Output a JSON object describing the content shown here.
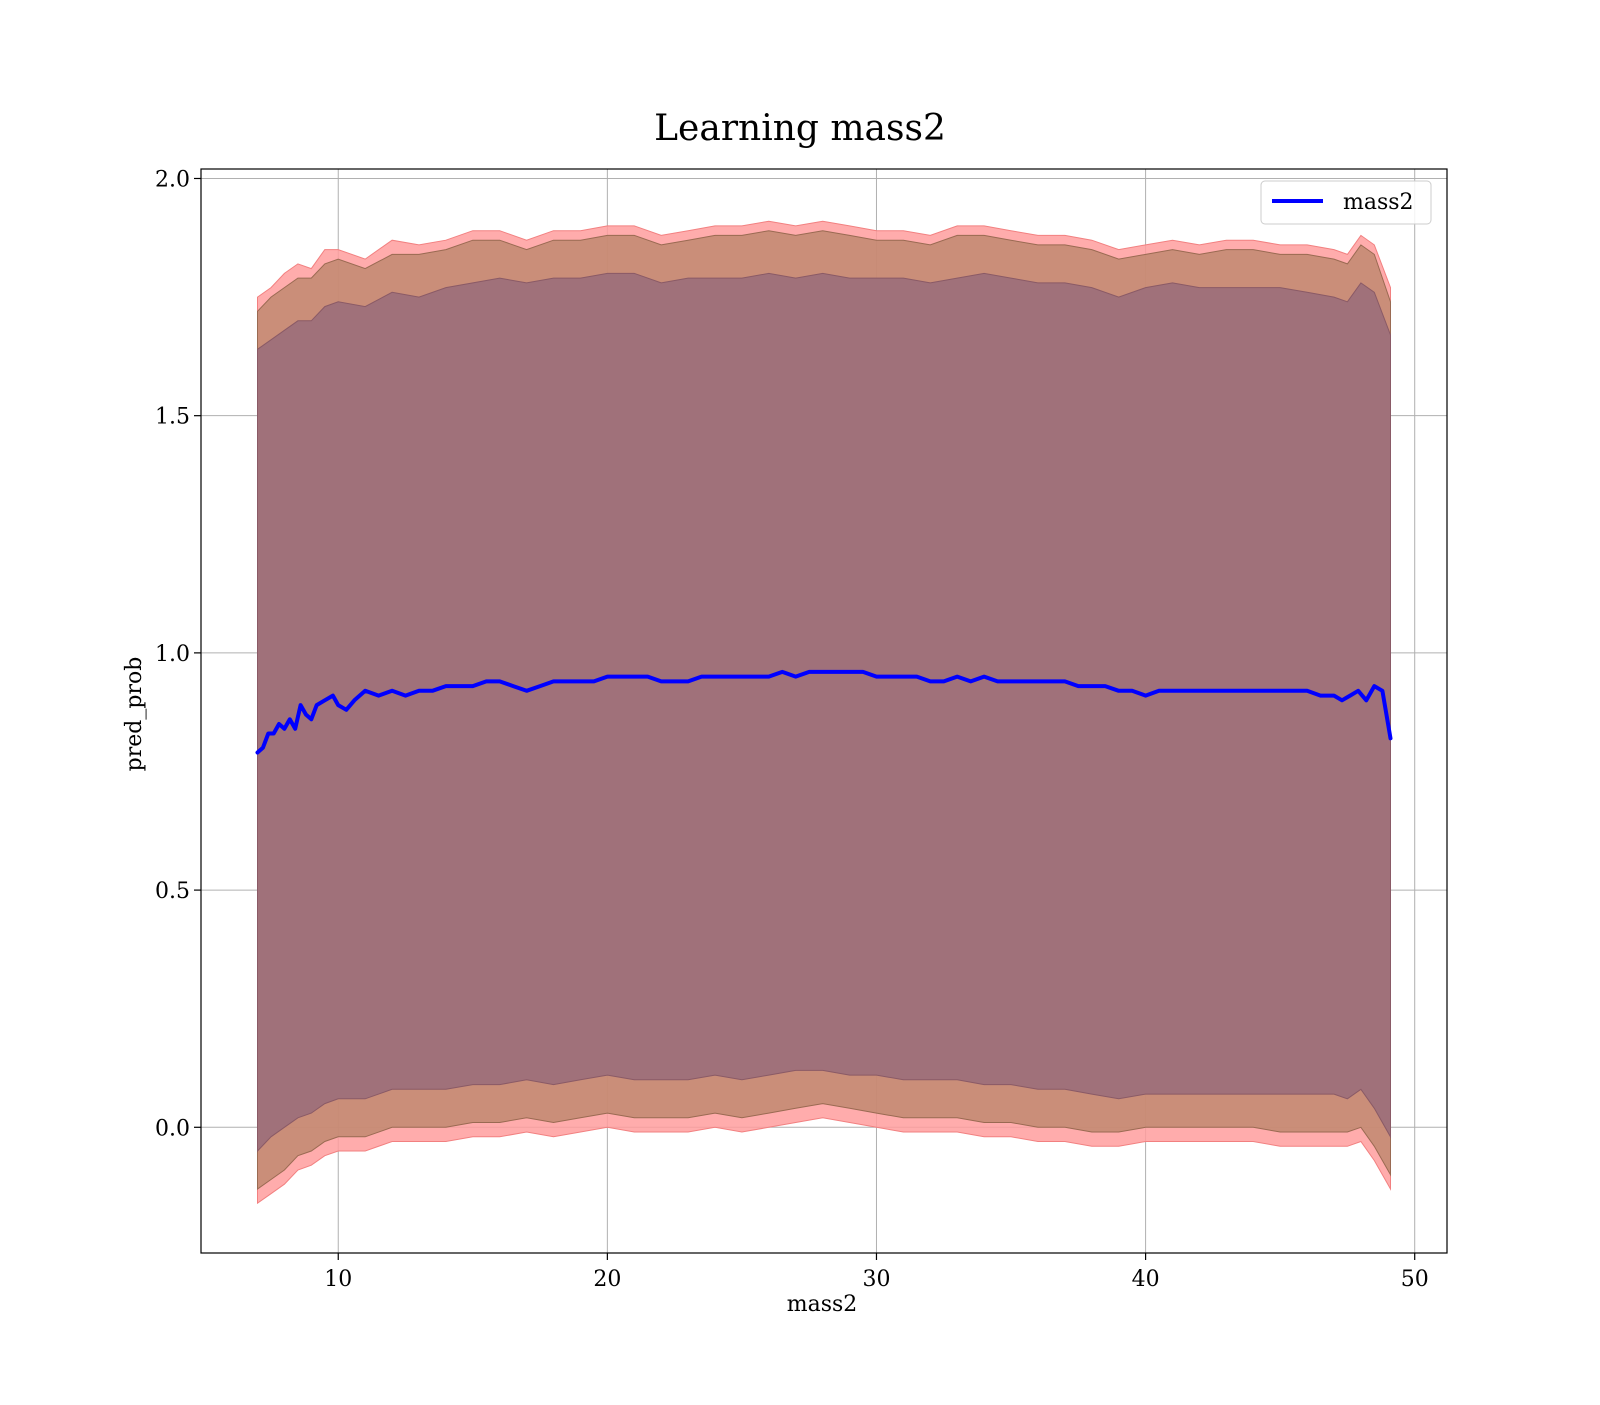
{
  "chart_data": {
    "type": "area",
    "title": "Learning mass2",
    "xlabel": "mass2",
    "ylabel": "pred_prob",
    "xlim": [
      4.9,
      51.2
    ],
    "ylim": [
      -0.265,
      2.02
    ],
    "x_ticks": [
      10,
      20,
      30,
      40,
      50
    ],
    "y_ticks": [
      0.0,
      0.5,
      1.0,
      1.5,
      2.0
    ],
    "x_tick_labels": [
      "10",
      "20",
      "30",
      "40",
      "50"
    ],
    "y_tick_labels": [
      "0.0",
      "0.5",
      "1.0",
      "1.5",
      "2.0"
    ],
    "grid": true,
    "legend": {
      "position": "top-right",
      "entries": [
        "mass2"
      ]
    },
    "bands": [
      {
        "fill": "#ff9e9e",
        "edge": "#f28080",
        "opacity": 0.85,
        "x": [
          7.0,
          7.5,
          8.0,
          8.5,
          9.0,
          9.5,
          10.0,
          11.0,
          12.0,
          13.0,
          14.0,
          15.0,
          16.0,
          17.0,
          18.0,
          19.0,
          20.0,
          21.0,
          22.0,
          23.0,
          24.0,
          25.0,
          26.0,
          27.0,
          28.0,
          29.0,
          30.0,
          31.0,
          32.0,
          33.0,
          34.0,
          35.0,
          36.0,
          37.0,
          38.0,
          39.0,
          40.0,
          41.0,
          42.0,
          43.0,
          44.0,
          45.0,
          46.0,
          47.0,
          47.5,
          48.0,
          48.5,
          49.1
        ],
        "upper": [
          1.75,
          1.77,
          1.8,
          1.82,
          1.81,
          1.85,
          1.85,
          1.83,
          1.87,
          1.86,
          1.87,
          1.89,
          1.89,
          1.87,
          1.89,
          1.89,
          1.9,
          1.9,
          1.88,
          1.89,
          1.9,
          1.9,
          1.91,
          1.9,
          1.91,
          1.9,
          1.89,
          1.89,
          1.88,
          1.9,
          1.9,
          1.89,
          1.88,
          1.88,
          1.87,
          1.85,
          1.86,
          1.87,
          1.86,
          1.87,
          1.87,
          1.86,
          1.86,
          1.85,
          1.84,
          1.88,
          1.86,
          1.77
        ],
        "lower": [
          -0.16,
          -0.14,
          -0.12,
          -0.09,
          -0.08,
          -0.06,
          -0.05,
          -0.05,
          -0.03,
          -0.03,
          -0.03,
          -0.02,
          -0.02,
          -0.01,
          -0.02,
          -0.01,
          0.0,
          -0.01,
          -0.01,
          -0.01,
          0.0,
          -0.01,
          0.0,
          0.01,
          0.02,
          0.01,
          0.0,
          -0.01,
          -0.01,
          -0.01,
          -0.02,
          -0.02,
          -0.03,
          -0.03,
          -0.04,
          -0.04,
          -0.03,
          -0.03,
          -0.03,
          -0.03,
          -0.03,
          -0.04,
          -0.04,
          -0.04,
          -0.04,
          -0.03,
          -0.07,
          -0.13
        ]
      },
      {
        "fill": "#b88468",
        "edge": "#9a6a52",
        "opacity": 0.75,
        "x": [
          7.0,
          7.5,
          8.0,
          8.5,
          9.0,
          9.5,
          10.0,
          11.0,
          12.0,
          13.0,
          14.0,
          15.0,
          16.0,
          17.0,
          18.0,
          19.0,
          20.0,
          21.0,
          22.0,
          23.0,
          24.0,
          25.0,
          26.0,
          27.0,
          28.0,
          29.0,
          30.0,
          31.0,
          32.0,
          33.0,
          34.0,
          35.0,
          36.0,
          37.0,
          38.0,
          39.0,
          40.0,
          41.0,
          42.0,
          43.0,
          44.0,
          45.0,
          46.0,
          47.0,
          47.5,
          48.0,
          48.5,
          49.1
        ],
        "upper": [
          1.72,
          1.75,
          1.77,
          1.79,
          1.79,
          1.82,
          1.83,
          1.81,
          1.84,
          1.84,
          1.85,
          1.87,
          1.87,
          1.85,
          1.87,
          1.87,
          1.88,
          1.88,
          1.86,
          1.87,
          1.88,
          1.88,
          1.89,
          1.88,
          1.89,
          1.88,
          1.87,
          1.87,
          1.86,
          1.88,
          1.88,
          1.87,
          1.86,
          1.86,
          1.85,
          1.83,
          1.84,
          1.85,
          1.84,
          1.85,
          1.85,
          1.84,
          1.84,
          1.83,
          1.82,
          1.86,
          1.84,
          1.74
        ],
        "lower": [
          -0.13,
          -0.11,
          -0.09,
          -0.06,
          -0.05,
          -0.03,
          -0.02,
          -0.02,
          0.0,
          0.0,
          0.0,
          0.01,
          0.01,
          0.02,
          0.01,
          0.02,
          0.03,
          0.02,
          0.02,
          0.02,
          0.03,
          0.02,
          0.03,
          0.04,
          0.05,
          0.04,
          0.03,
          0.02,
          0.02,
          0.02,
          0.01,
          0.01,
          0.0,
          0.0,
          -0.01,
          -0.01,
          0.0,
          0.0,
          0.0,
          0.0,
          0.0,
          -0.01,
          -0.01,
          -0.01,
          -0.01,
          0.0,
          -0.04,
          -0.1
        ]
      },
      {
        "fill": "#a0717a",
        "edge": "#8a5a66",
        "opacity": 1.0,
        "x": [
          7.0,
          7.5,
          8.0,
          8.5,
          9.0,
          9.5,
          10.0,
          11.0,
          12.0,
          13.0,
          14.0,
          15.0,
          16.0,
          17.0,
          18.0,
          19.0,
          20.0,
          21.0,
          22.0,
          23.0,
          24.0,
          25.0,
          26.0,
          27.0,
          28.0,
          29.0,
          30.0,
          31.0,
          32.0,
          33.0,
          34.0,
          35.0,
          36.0,
          37.0,
          38.0,
          39.0,
          40.0,
          41.0,
          42.0,
          43.0,
          44.0,
          45.0,
          46.0,
          47.0,
          47.5,
          48.0,
          48.5,
          49.1
        ],
        "upper": [
          1.64,
          1.66,
          1.68,
          1.7,
          1.7,
          1.73,
          1.74,
          1.73,
          1.76,
          1.75,
          1.77,
          1.78,
          1.79,
          1.78,
          1.79,
          1.79,
          1.8,
          1.8,
          1.78,
          1.79,
          1.79,
          1.79,
          1.8,
          1.79,
          1.8,
          1.79,
          1.79,
          1.79,
          1.78,
          1.79,
          1.8,
          1.79,
          1.78,
          1.78,
          1.77,
          1.75,
          1.77,
          1.78,
          1.77,
          1.77,
          1.77,
          1.77,
          1.76,
          1.75,
          1.74,
          1.78,
          1.76,
          1.67
        ],
        "lower": [
          -0.05,
          -0.02,
          0.0,
          0.02,
          0.03,
          0.05,
          0.06,
          0.06,
          0.08,
          0.08,
          0.08,
          0.09,
          0.09,
          0.1,
          0.09,
          0.1,
          0.11,
          0.1,
          0.1,
          0.1,
          0.11,
          0.1,
          0.11,
          0.12,
          0.12,
          0.11,
          0.11,
          0.1,
          0.1,
          0.1,
          0.09,
          0.09,
          0.08,
          0.08,
          0.07,
          0.06,
          0.07,
          0.07,
          0.07,
          0.07,
          0.07,
          0.07,
          0.07,
          0.07,
          0.06,
          0.08,
          0.04,
          -0.02
        ]
      }
    ],
    "series": [
      {
        "name": "mass2",
        "color": "#0000ff",
        "x": [
          7.0,
          7.2,
          7.4,
          7.6,
          7.8,
          8.0,
          8.2,
          8.4,
          8.6,
          8.8,
          9.0,
          9.2,
          9.5,
          9.8,
          10.0,
          10.3,
          10.6,
          11.0,
          11.5,
          12.0,
          12.5,
          13.0,
          13.5,
          14.0,
          14.5,
          15.0,
          15.5,
          16.0,
          16.5,
          17.0,
          17.5,
          18.0,
          18.5,
          19.0,
          19.5,
          20.0,
          20.5,
          21.0,
          21.5,
          22.0,
          22.5,
          23.0,
          23.5,
          24.0,
          24.5,
          25.0,
          25.5,
          26.0,
          26.5,
          27.0,
          27.5,
          28.0,
          28.5,
          29.0,
          29.5,
          30.0,
          30.5,
          31.0,
          31.5,
          32.0,
          32.5,
          33.0,
          33.5,
          34.0,
          34.5,
          35.0,
          35.5,
          36.0,
          36.5,
          37.0,
          37.5,
          38.0,
          38.5,
          39.0,
          39.5,
          40.0,
          40.5,
          41.0,
          41.5,
          42.0,
          42.5,
          43.0,
          43.5,
          44.0,
          44.5,
          45.0,
          45.5,
          46.0,
          46.5,
          47.0,
          47.3,
          47.6,
          47.9,
          48.2,
          48.5,
          48.8,
          49.1
        ],
        "y": [
          0.79,
          0.8,
          0.83,
          0.83,
          0.85,
          0.84,
          0.86,
          0.84,
          0.89,
          0.87,
          0.86,
          0.89,
          0.9,
          0.91,
          0.89,
          0.88,
          0.9,
          0.92,
          0.91,
          0.92,
          0.91,
          0.92,
          0.92,
          0.93,
          0.93,
          0.93,
          0.94,
          0.94,
          0.93,
          0.92,
          0.93,
          0.94,
          0.94,
          0.94,
          0.94,
          0.95,
          0.95,
          0.95,
          0.95,
          0.94,
          0.94,
          0.94,
          0.95,
          0.95,
          0.95,
          0.95,
          0.95,
          0.95,
          0.96,
          0.95,
          0.96,
          0.96,
          0.96,
          0.96,
          0.96,
          0.95,
          0.95,
          0.95,
          0.95,
          0.94,
          0.94,
          0.95,
          0.94,
          0.95,
          0.94,
          0.94,
          0.94,
          0.94,
          0.94,
          0.94,
          0.93,
          0.93,
          0.93,
          0.92,
          0.92,
          0.91,
          0.92,
          0.92,
          0.92,
          0.92,
          0.92,
          0.92,
          0.92,
          0.92,
          0.92,
          0.92,
          0.92,
          0.92,
          0.91,
          0.91,
          0.9,
          0.91,
          0.92,
          0.9,
          0.93,
          0.92,
          0.82
        ]
      }
    ]
  }
}
